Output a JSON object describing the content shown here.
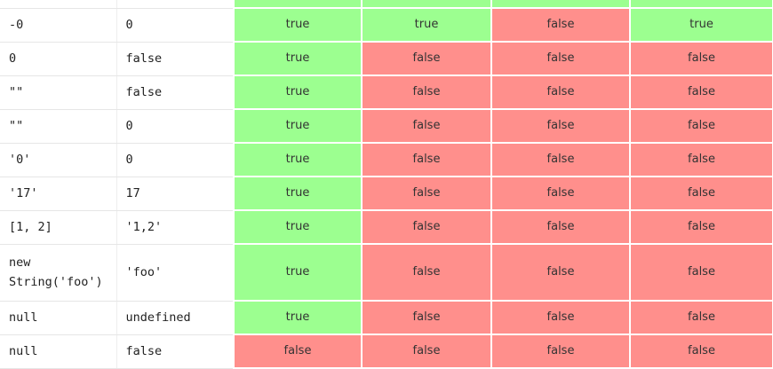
{
  "rows": [
    {
      "a": "",
      "b": "",
      "r": [
        "",
        "",
        "",
        ""
      ],
      "s": [
        "t",
        "t",
        "t",
        "t"
      ]
    },
    {
      "a": "-0",
      "b": "0",
      "r": [
        "true",
        "true",
        "false",
        "true"
      ],
      "s": [
        "t",
        "t",
        "f",
        "t"
      ]
    },
    {
      "a": "0",
      "b": "false",
      "r": [
        "true",
        "false",
        "false",
        "false"
      ],
      "s": [
        "t",
        "f",
        "f",
        "f"
      ]
    },
    {
      "a": "\"\"",
      "b": "false",
      "r": [
        "true",
        "false",
        "false",
        "false"
      ],
      "s": [
        "t",
        "f",
        "f",
        "f"
      ]
    },
    {
      "a": "\"\"",
      "b": "0",
      "r": [
        "true",
        "false",
        "false",
        "false"
      ],
      "s": [
        "t",
        "f",
        "f",
        "f"
      ]
    },
    {
      "a": "'0'",
      "b": "0",
      "r": [
        "true",
        "false",
        "false",
        "false"
      ],
      "s": [
        "t",
        "f",
        "f",
        "f"
      ]
    },
    {
      "a": "'17'",
      "b": "17",
      "r": [
        "true",
        "false",
        "false",
        "false"
      ],
      "s": [
        "t",
        "f",
        "f",
        "f"
      ]
    },
    {
      "a": "[1, 2]",
      "b": "'1,2'",
      "r": [
        "true",
        "false",
        "false",
        "false"
      ],
      "s": [
        "t",
        "f",
        "f",
        "f"
      ]
    },
    {
      "a": "new String('foo')",
      "b": "'foo'",
      "r": [
        "true",
        "false",
        "false",
        "false"
      ],
      "s": [
        "t",
        "f",
        "f",
        "f"
      ]
    },
    {
      "a": "null",
      "b": "undefined",
      "r": [
        "true",
        "false",
        "false",
        "false"
      ],
      "s": [
        "t",
        "f",
        "f",
        "f"
      ]
    },
    {
      "a": "null",
      "b": "false",
      "r": [
        "false",
        "false",
        "false",
        "false"
      ],
      "s": [
        "f",
        "f",
        "f",
        "f"
      ]
    }
  ],
  "colors": {
    "true_bg": "#9cff90",
    "false_bg": "#ff8f8c"
  }
}
